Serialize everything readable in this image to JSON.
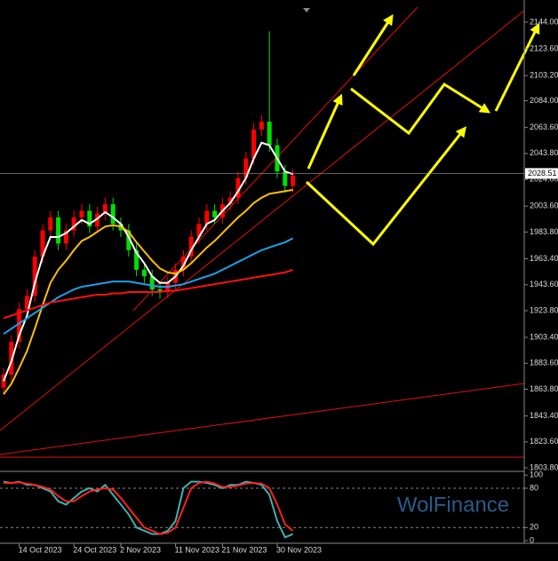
{
  "chart_data": [
    {
      "type": "candlestick",
      "categories": [
        null,
        null,
        "14 Oct 2023",
        null,
        null,
        null,
        null,
        null,
        null,
        "24 Oct 2023",
        null,
        null,
        null,
        null,
        null,
        "2 Nov 2023",
        null,
        null,
        null,
        null,
        null,
        null,
        "11 Nov 2023",
        null,
        null,
        null,
        null,
        null,
        "21 Nov 2023",
        null,
        null,
        null,
        null,
        null,
        null,
        "30 Nov 2023",
        null,
        null
      ],
      "open": [
        1865,
        1875,
        1900,
        1925,
        1935,
        1965,
        1985,
        1995,
        1975,
        1985,
        1995,
        2000,
        1988,
        1998,
        2005,
        1990,
        1985,
        1970,
        1955,
        1950,
        1940,
        1938,
        1945,
        1955,
        1965,
        1980,
        1990,
        2000,
        1995,
        2005,
        2010,
        2025,
        2040,
        2062,
        2068,
        2050,
        2030,
        2019
      ],
      "high": [
        1880,
        1905,
        1930,
        1940,
        1970,
        1990,
        2000,
        2000,
        1990,
        2000,
        2005,
        2005,
        2003,
        2010,
        2010,
        1995,
        1990,
        1975,
        1960,
        1955,
        1945,
        1950,
        1960,
        1970,
        1985,
        1995,
        2005,
        2005,
        2010,
        2015,
        2030,
        2045,
        2067,
        2073,
        2137,
        2055,
        2035,
        2032
      ],
      "low": [
        1860,
        1870,
        1895,
        1920,
        1930,
        1960,
        1980,
        1970,
        1970,
        1980,
        1990,
        1983,
        1983,
        1993,
        1985,
        1980,
        1965,
        1950,
        1945,
        1935,
        1933,
        1933,
        1940,
        1950,
        1960,
        1975,
        1985,
        1990,
        1990,
        2000,
        2005,
        2020,
        2035,
        2057,
        2045,
        2025,
        2014,
        2014
      ],
      "close": [
        1875,
        1900,
        1925,
        1935,
        1965,
        1985,
        1995,
        1975,
        1985,
        1995,
        2000,
        1988,
        1998,
        2005,
        1990,
        1985,
        1970,
        1955,
        1950,
        1940,
        1938,
        1945,
        1955,
        1965,
        1980,
        1990,
        2000,
        1995,
        2005,
        2010,
        2025,
        2040,
        2062,
        2068,
        2050,
        2030,
        2019,
        2027
      ],
      "up_color": "#ff0000",
      "down_color": "#00e000",
      "series": [
        {
          "color": "#ffffff",
          "values": [
            1870,
            1885,
            1905,
            1920,
            1945,
            1965,
            1980,
            1980,
            1983,
            1988,
            1993,
            1990,
            1994,
            1999,
            1995,
            1990,
            1980,
            1968,
            1960,
            1950,
            1945,
            1945,
            1950,
            1958,
            1970,
            1980,
            1990,
            1993,
            2000,
            2006,
            2015,
            2025,
            2040,
            2052,
            2050,
            2040,
            2030,
            2028
          ]
        },
        {
          "color": "#ffc000",
          "values": [
            1860,
            1868,
            1880,
            1893,
            1910,
            1928,
            1945,
            1955,
            1962,
            1970,
            1977,
            1980,
            1984,
            1988,
            1989,
            1988,
            1984,
            1976,
            1969,
            1962,
            1956,
            1953,
            1952,
            1955,
            1960,
            1966,
            1972,
            1977,
            1983,
            1989,
            1995,
            2000,
            2006,
            2010,
            2013,
            2014,
            2015,
            2016
          ]
        },
        {
          "color": "#1e9fe8",
          "values": [
            1906,
            1910,
            1914,
            1918,
            1922,
            1926,
            1930,
            1934,
            1937,
            1940,
            1942,
            1943,
            1944,
            1945,
            1946,
            1946,
            1946,
            1945,
            1944,
            1943,
            1942,
            1942,
            1943,
            1944,
            1946,
            1948,
            1950,
            1952,
            1955,
            1958,
            1961,
            1964,
            1967,
            1970,
            1972,
            1974,
            1976,
            1979
          ]
        },
        {
          "color": "#ff1010",
          "values": [
            1918,
            1920,
            1922,
            1924,
            1926,
            1928,
            1930,
            1931,
            1932,
            1933,
            1934,
            1935,
            1936,
            1936,
            1937,
            1937,
            1938,
            1938,
            1938,
            1938,
            1938,
            1939,
            1939,
            1940,
            1941,
            1942,
            1943,
            1944,
            1945,
            1946,
            1947,
            1948,
            1949,
            1950,
            1951,
            1952,
            1953,
            1955
          ]
        }
      ],
      "ylim": [
        1801.8,
        2155.5
      ],
      "yticks": [
        {
          "value": 2144,
          "label": "2144.00"
        },
        {
          "value": 2123.6,
          "label": "2123.60"
        },
        {
          "value": 2103.2,
          "label": "2103.20"
        },
        {
          "value": 2084,
          "label": "2084.00"
        },
        {
          "value": 2063.6,
          "label": "2063.60"
        },
        {
          "value": 2043.8,
          "label": "2043.80"
        },
        {
          "value": 2024,
          "label": "2024.00"
        },
        {
          "value": 2003.6,
          "label": "2003.60"
        },
        {
          "value": 1983.8,
          "label": "1983.80"
        },
        {
          "value": 1963.4,
          "label": "1963.40"
        },
        {
          "value": 1943.6,
          "label": "1943.60"
        },
        {
          "value": 1923.8,
          "label": "1923.80"
        },
        {
          "value": 1903.4,
          "label": "1903.40"
        },
        {
          "value": 1883.6,
          "label": "1883.60"
        },
        {
          "value": 1863.8,
          "label": "1863.80"
        },
        {
          "value": 1843.4,
          "label": "1843.40"
        },
        {
          "value": 1823.6,
          "label": "1823.60"
        },
        {
          "value": 1803.8,
          "label": "1803.80"
        }
      ],
      "current_price": 2028.51
    },
    {
      "type": "line",
      "series": [
        {
          "color": "#40b0b0",
          "values": [
            90,
            88,
            90,
            85,
            85,
            80,
            75,
            60,
            55,
            65,
            75,
            80,
            75,
            85,
            70,
            55,
            40,
            20,
            15,
            10,
            10,
            15,
            30,
            80,
            90,
            90,
            88,
            85,
            80,
            85,
            85,
            90,
            88,
            85,
            70,
            30,
            5,
            10
          ]
        },
        {
          "color": "#ff2020",
          "values": [
            88,
            88,
            89,
            87,
            85,
            82,
            78,
            68,
            60,
            60,
            68,
            75,
            78,
            80,
            78,
            65,
            50,
            35,
            20,
            15,
            10,
            12,
            20,
            50,
            80,
            88,
            90,
            87,
            82,
            82,
            84,
            87,
            88,
            87,
            80,
            55,
            25,
            15
          ]
        }
      ],
      "ylim": [
        -4,
        103
      ],
      "yticks": [
        100,
        80,
        20,
        0
      ],
      "levels": [
        80,
        20
      ]
    }
  ],
  "watermark": "WolFinance"
}
